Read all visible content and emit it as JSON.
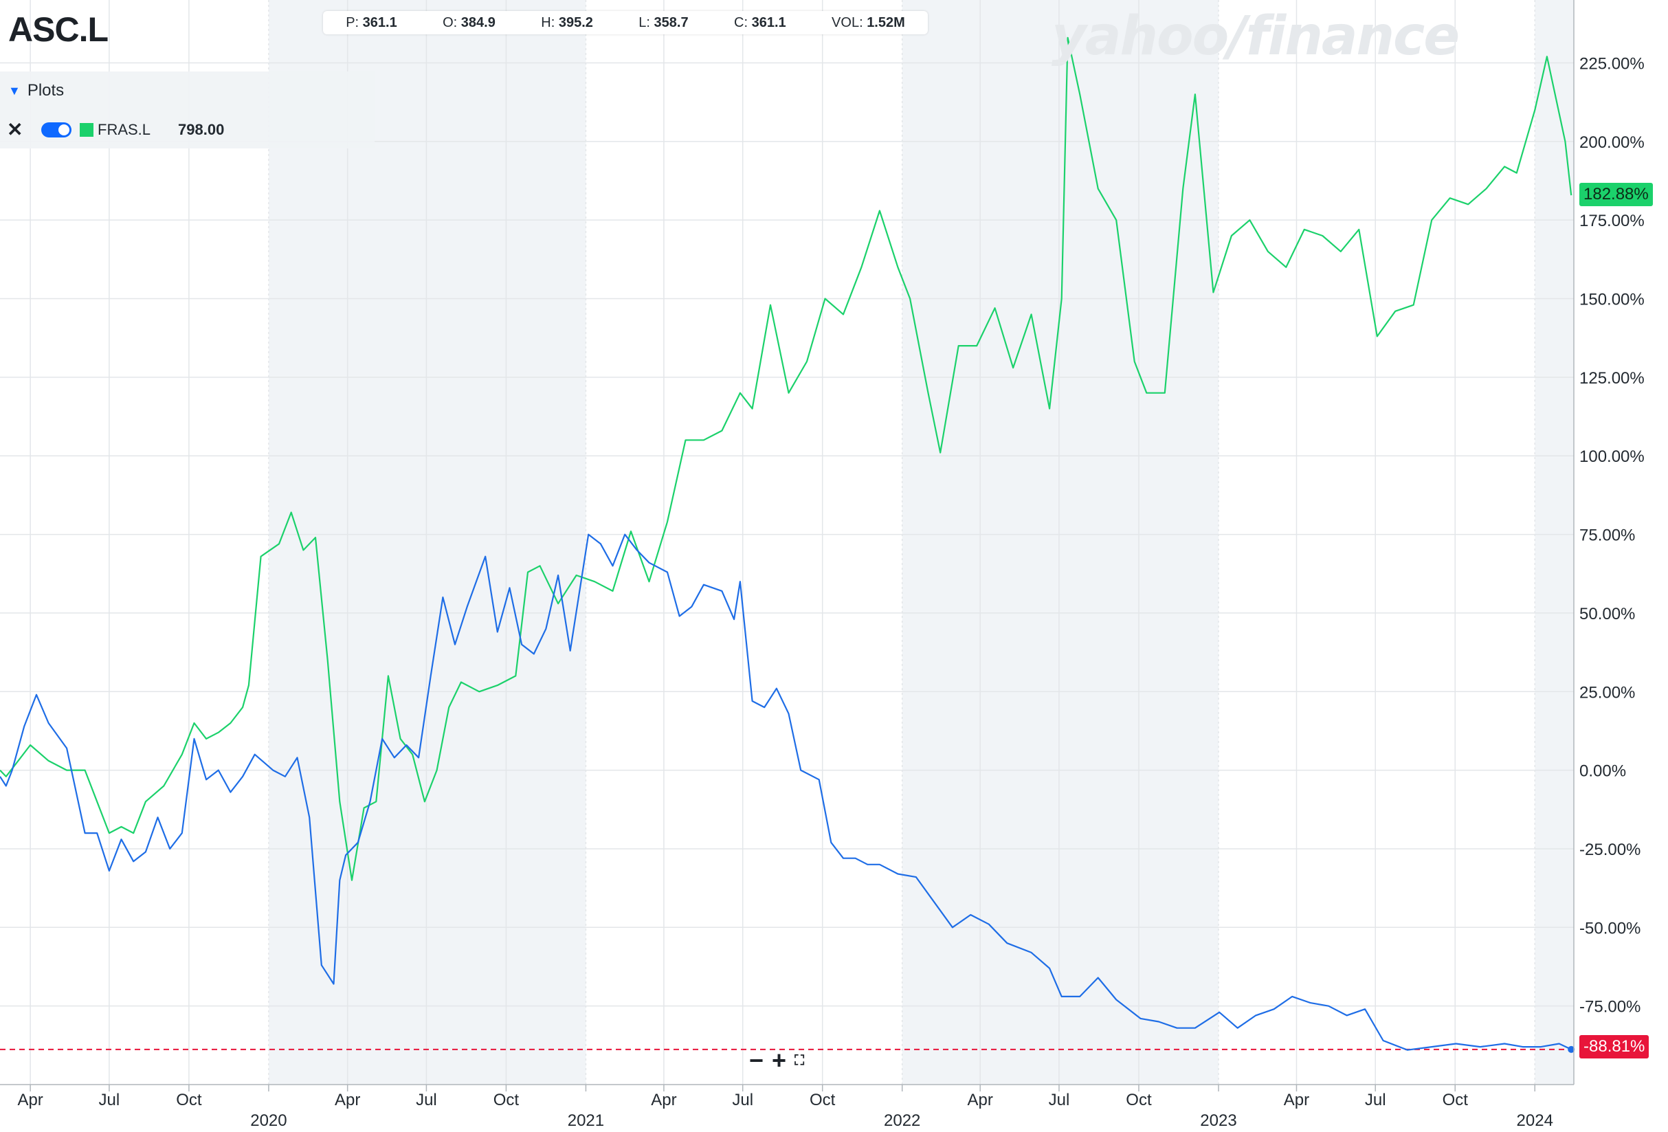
{
  "header": {
    "ticker": "ASC.L",
    "watermark": "yahoo/finance",
    "ohlc": [
      {
        "label": "P:",
        "value": "361.1"
      },
      {
        "label": "O:",
        "value": "384.9"
      },
      {
        "label": "H:",
        "value": "395.2"
      },
      {
        "label": "L:",
        "value": "358.7"
      },
      {
        "label": "C:",
        "value": "361.1"
      },
      {
        "label": "VOL:",
        "value": "1.52M"
      }
    ]
  },
  "plots_panel": {
    "title": "Plots",
    "symbol": "FRAS.L",
    "value": "798.00",
    "close_icon": "close-icon",
    "toggle_icon": "toggle-icon"
  },
  "zoom_controls": {
    "minus": "−",
    "plus": "+",
    "reset": "⛶"
  },
  "colors": {
    "asc": "#1e6de6",
    "fras": "#1bd16b",
    "current_line": "#e8153a",
    "shade": "#f1f4f7",
    "grid": "#e3e6e9"
  },
  "chart_data": {
    "type": "line",
    "x_axis": {
      "tick_labels": [
        "Apr",
        "Jul",
        "Oct",
        "2020",
        "Apr",
        "Jul",
        "Oct",
        "2021",
        "Apr",
        "Jul",
        "Oct",
        "2022",
        "Apr",
        "Jul",
        "Oct",
        "2023",
        "Apr",
        "Jul",
        "Oct",
        "2024"
      ],
      "tick_dates": [
        "2019-04-01",
        "2019-07-01",
        "2019-10-01",
        "2020-01-01",
        "2020-04-01",
        "2020-07-01",
        "2020-10-01",
        "2021-01-01",
        "2021-04-01",
        "2021-07-01",
        "2021-10-01",
        "2022-01-01",
        "2022-04-01",
        "2022-07-01",
        "2022-10-01",
        "2023-01-01",
        "2023-04-01",
        "2023-07-01",
        "2023-10-01",
        "2024-01-01"
      ],
      "range": [
        "2019-02-25",
        "2024-02-15"
      ],
      "shaded_years": [
        [
          "2020-01-01",
          "2021-01-01"
        ],
        [
          "2022-01-01",
          "2023-01-01"
        ],
        [
          "2024-01-01",
          "2024-02-15"
        ]
      ]
    },
    "y_axis": {
      "unit": "%",
      "range": [
        -100,
        245
      ],
      "tick_labels": [
        "225.00%",
        "200.00%",
        "175.00%",
        "150.00%",
        "125.00%",
        "100.00%",
        "75.00%",
        "50.00%",
        "25.00%",
        "0.00%",
        "-25.00%",
        "-50.00%",
        "-75.00%"
      ],
      "tick_values": [
        225,
        200,
        175,
        150,
        125,
        100,
        75,
        50,
        25,
        0,
        -25,
        -50,
        -75
      ],
      "grid": true
    },
    "current_badges": [
      {
        "label": "182.88%",
        "value": 182.88,
        "series": "FRAS.L"
      },
      {
        "label": "-88.81%",
        "value": -88.81,
        "series": "ASC.L"
      }
    ],
    "series": [
      {
        "name": "ASC.L",
        "color": "#1e6de6",
        "x": [
          "2019-02-25",
          "2019-03-04",
          "2019-03-11",
          "2019-03-25",
          "2019-04-08",
          "2019-04-22",
          "2019-05-13",
          "2019-06-03",
          "2019-06-17",
          "2019-07-01",
          "2019-07-15",
          "2019-07-29",
          "2019-08-12",
          "2019-08-26",
          "2019-09-09",
          "2019-09-23",
          "2019-10-07",
          "2019-10-21",
          "2019-11-04",
          "2019-11-18",
          "2019-12-02",
          "2019-12-16",
          "2020-01-06",
          "2020-01-20",
          "2020-02-03",
          "2020-02-17",
          "2020-03-02",
          "2020-03-16",
          "2020-03-23",
          "2020-03-30",
          "2020-04-13",
          "2020-04-27",
          "2020-05-11",
          "2020-05-25",
          "2020-06-08",
          "2020-06-22",
          "2020-07-06",
          "2020-07-20",
          "2020-08-03",
          "2020-08-17",
          "2020-09-07",
          "2020-09-21",
          "2020-10-05",
          "2020-10-19",
          "2020-11-02",
          "2020-11-16",
          "2020-11-30",
          "2020-12-14",
          "2021-01-04",
          "2021-01-18",
          "2021-02-01",
          "2021-02-15",
          "2021-03-01",
          "2021-03-15",
          "2021-04-05",
          "2021-04-19",
          "2021-05-03",
          "2021-05-17",
          "2021-06-07",
          "2021-06-21",
          "2021-06-28",
          "2021-07-12",
          "2021-07-26",
          "2021-08-09",
          "2021-08-23",
          "2021-09-06",
          "2021-09-27",
          "2021-10-11",
          "2021-10-25",
          "2021-11-08",
          "2021-11-22",
          "2021-12-06",
          "2021-12-27",
          "2022-01-17",
          "2022-02-07",
          "2022-02-28",
          "2022-03-21",
          "2022-04-11",
          "2022-05-02",
          "2022-05-30",
          "2022-06-20",
          "2022-07-04",
          "2022-07-25",
          "2022-08-15",
          "2022-09-05",
          "2022-10-03",
          "2022-10-24",
          "2022-11-14",
          "2022-12-05",
          "2023-01-02",
          "2023-01-23",
          "2023-02-13",
          "2023-03-06",
          "2023-03-27",
          "2023-04-17",
          "2023-05-08",
          "2023-05-29",
          "2023-06-19",
          "2023-07-10",
          "2023-08-07",
          "2023-09-04",
          "2023-10-02",
          "2023-10-30",
          "2023-11-27",
          "2023-12-18",
          "2024-01-08",
          "2024-01-29",
          "2024-02-12"
        ],
        "values": [
          -2,
          -5,
          0,
          14,
          24,
          15,
          7,
          -20,
          -20,
          -32,
          -22,
          -29,
          -26,
          -15,
          -25,
          -20,
          10,
          -3,
          0,
          -7,
          -2,
          5,
          0,
          -2,
          4,
          -15,
          -62,
          -68,
          -35,
          -27,
          -23,
          -10,
          10,
          4,
          8,
          4,
          30,
          55,
          40,
          52,
          68,
          44,
          58,
          40,
          37,
          45,
          62,
          38,
          75,
          72,
          65,
          75,
          70,
          66,
          63,
          49,
          52,
          59,
          57,
          48,
          60,
          22,
          20,
          26,
          18,
          0,
          -3,
          -23,
          -28,
          -28,
          -30,
          -30,
          -33,
          -34,
          -42,
          -50,
          -46,
          -49,
          -55,
          -58,
          -63,
          -72,
          -72,
          -66,
          -73,
          -79,
          -80,
          -82,
          -82,
          -77,
          -82,
          -78,
          -76,
          -72,
          -74,
          -75,
          -78,
          -76,
          -86,
          -89,
          -88,
          -87,
          -88,
          -87,
          -88,
          -88,
          -87,
          -88.81
        ]
      },
      {
        "name": "FRAS.L",
        "color": "#1bd16b",
        "x": [
          "2019-02-25",
          "2019-03-04",
          "2019-03-18",
          "2019-04-01",
          "2019-04-22",
          "2019-05-13",
          "2019-06-03",
          "2019-06-17",
          "2019-07-01",
          "2019-07-15",
          "2019-07-29",
          "2019-08-12",
          "2019-09-02",
          "2019-09-23",
          "2019-10-07",
          "2019-10-21",
          "2019-11-04",
          "2019-11-18",
          "2019-12-02",
          "2019-12-09",
          "2019-12-23",
          "2020-01-13",
          "2020-01-27",
          "2020-02-10",
          "2020-02-24",
          "2020-03-09",
          "2020-03-23",
          "2020-04-06",
          "2020-04-20",
          "2020-05-04",
          "2020-05-18",
          "2020-06-01",
          "2020-06-15",
          "2020-06-29",
          "2020-07-13",
          "2020-07-27",
          "2020-08-10",
          "2020-08-31",
          "2020-09-21",
          "2020-10-12",
          "2020-10-26",
          "2020-11-09",
          "2020-11-30",
          "2020-12-21",
          "2021-01-11",
          "2021-02-01",
          "2021-02-22",
          "2021-03-15",
          "2021-04-05",
          "2021-04-26",
          "2021-05-17",
          "2021-06-07",
          "2021-06-28",
          "2021-07-12",
          "2021-08-02",
          "2021-08-23",
          "2021-09-13",
          "2021-10-04",
          "2021-10-25",
          "2021-11-15",
          "2021-12-06",
          "2021-12-27",
          "2022-01-10",
          "2022-01-31",
          "2022-02-14",
          "2022-03-07",
          "2022-03-28",
          "2022-04-18",
          "2022-05-09",
          "2022-05-30",
          "2022-06-20",
          "2022-07-04",
          "2022-07-11",
          "2022-07-25",
          "2022-08-15",
          "2022-09-05",
          "2022-09-26",
          "2022-10-10",
          "2022-10-31",
          "2022-11-21",
          "2022-12-05",
          "2022-12-26",
          "2023-01-16",
          "2023-02-06",
          "2023-02-27",
          "2023-03-20",
          "2023-04-10",
          "2023-05-01",
          "2023-05-22",
          "2023-06-12",
          "2023-07-03",
          "2023-07-24",
          "2023-08-14",
          "2023-09-04",
          "2023-09-25",
          "2023-10-16",
          "2023-11-06",
          "2023-11-27",
          "2023-12-11",
          "2024-01-01",
          "2024-01-15",
          "2024-02-05",
          "2024-02-12"
        ],
        "values": [
          0,
          -2,
          3,
          8,
          3,
          0,
          0,
          -10,
          -20,
          -18,
          -20,
          -10,
          -5,
          5,
          15,
          10,
          12,
          15,
          20,
          27,
          68,
          72,
          82,
          70,
          74,
          35,
          -10,
          -35,
          -12,
          -10,
          30,
          10,
          5,
          -10,
          0,
          20,
          28,
          25,
          27,
          30,
          63,
          65,
          53,
          62,
          60,
          57,
          76,
          60,
          79,
          105,
          105,
          108,
          120,
          115,
          148,
          120,
          130,
          150,
          145,
          160,
          178,
          160,
          150,
          120,
          101,
          135,
          135,
          147,
          128,
          145,
          115,
          150,
          233,
          215,
          185,
          175,
          130,
          120,
          120,
          185,
          215,
          152,
          170,
          175,
          165,
          160,
          172,
          170,
          165,
          172,
          138,
          146,
          148,
          175,
          182,
          180,
          185,
          192,
          190,
          210,
          227,
          200,
          182.88
        ]
      }
    ]
  }
}
